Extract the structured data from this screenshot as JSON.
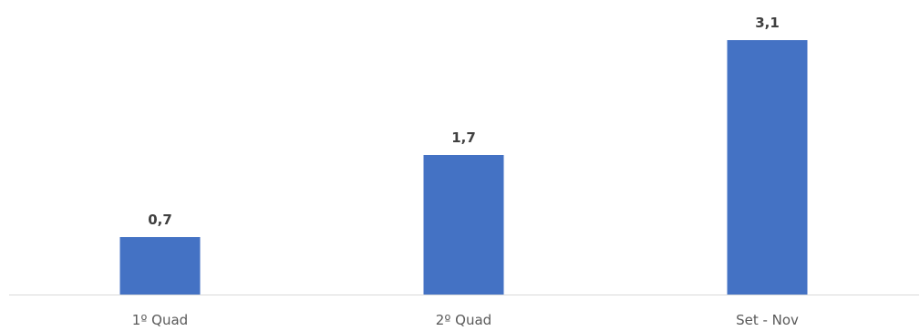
{
  "chart_data": {
    "type": "bar",
    "categories": [
      "1º Quad",
      "2º Quad",
      "Set - Nov"
    ],
    "values": [
      0.7,
      1.7,
      3.1
    ],
    "data_labels": [
      "0,7",
      "1,7",
      "3,1"
    ],
    "title": "",
    "xlabel": "",
    "ylabel": "",
    "ylim": [
      0,
      3.5
    ],
    "grid": false,
    "legend": "none",
    "colors": {
      "bar": "#4472C4",
      "axis_line": "#D9D9D9",
      "value_label": "#404040",
      "tick_label": "#595959"
    }
  }
}
